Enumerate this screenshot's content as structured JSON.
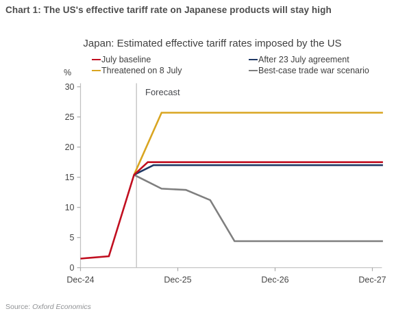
{
  "header": {
    "title": "Chart 1: The US's effective tariff rate on Japanese products will stay high"
  },
  "chart": {
    "subtitle": "Japan: Estimated effective tariff rates imposed by the US",
    "unit_label": "%",
    "forecast_label": "Forecast",
    "source_prefix": "Source: ",
    "source_name": "Oxford Economics"
  },
  "legend": {
    "items": [
      {
        "label": "July baseline",
        "color": "#c10f20"
      },
      {
        "label": "After 23 July agreement",
        "color": "#1f3864"
      },
      {
        "label": "Threatened on 8 July",
        "color": "#d9a521"
      },
      {
        "label": "Best-case trade war scenario",
        "color": "#7f7f7f"
      }
    ]
  },
  "chart_data": {
    "type": "line",
    "title": "Japan: Estimated effective tariff rates imposed by the US",
    "xlabel": "",
    "ylabel": "%",
    "ylim": [
      0,
      30
    ],
    "y_ticks": [
      0,
      5,
      10,
      15,
      20,
      25,
      30
    ],
    "x_tick_labels": [
      "Dec-24",
      "Dec-25",
      "Dec-26",
      "Dec-27"
    ],
    "x_tick_months": [
      0,
      12,
      24,
      36
    ],
    "x_range_months": [
      0,
      37.3
    ],
    "forecast_line_month": 6.9,
    "grid": false,
    "legend_position": "top",
    "series": [
      {
        "name": "Best-case trade war scenario",
        "color": "#7f7f7f",
        "points": [
          [
            6.6,
            15.4
          ],
          [
            10,
            13.1
          ],
          [
            13,
            12.9
          ],
          [
            16,
            11.2
          ],
          [
            19,
            4.4
          ],
          [
            37.3,
            4.4
          ]
        ]
      },
      {
        "name": "Threatened on 8 July",
        "color": "#d9a521",
        "points": [
          [
            6.6,
            15.4
          ],
          [
            10,
            25.7
          ],
          [
            37.3,
            25.7
          ]
        ]
      },
      {
        "name": "After 23 July agreement",
        "color": "#1f3864",
        "points": [
          [
            6.6,
            15.4
          ],
          [
            9,
            17.0
          ],
          [
            37.3,
            17.0
          ]
        ]
      },
      {
        "name": "July baseline",
        "color": "#c10f20",
        "points": [
          [
            0,
            1.5
          ],
          [
            3.5,
            1.9
          ],
          [
            6.6,
            15.4
          ],
          [
            8.3,
            17.5
          ],
          [
            37.3,
            17.5
          ]
        ]
      }
    ],
    "annotations": [
      "Forecast"
    ]
  }
}
